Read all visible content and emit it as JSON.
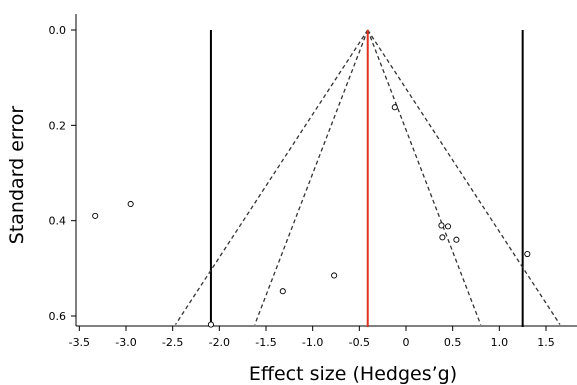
{
  "chart_data": {
    "type": "scatter",
    "title": "",
    "xlabel": "Effect size (Hedges’g)",
    "ylabel": "Standard error",
    "x_ticks": [
      "-3.5",
      "-3.0",
      "-2.5",
      "-2.0",
      "-1.5",
      "-1.0",
      "-0.5",
      "0",
      "0.5",
      "1.0",
      "1.5"
    ],
    "y_ticks": [
      "0.0",
      "0.2",
      "0.4",
      "0.6"
    ],
    "xlim": [
      -3.6,
      1.85
    ],
    "ylim": [
      0.0,
      0.625
    ],
    "y_inverted": true,
    "grid": false,
    "points": [
      {
        "x": -0.12,
        "y": 0.162
      },
      {
        "x": -2.95,
        "y": 0.365
      },
      {
        "x": -3.33,
        "y": 0.39
      },
      {
        "x": 0.38,
        "y": 0.41
      },
      {
        "x": 0.45,
        "y": 0.412
      },
      {
        "x": 0.39,
        "y": 0.435
      },
      {
        "x": 0.54,
        "y": 0.44
      },
      {
        "x": 1.3,
        "y": 0.47
      },
      {
        "x": -0.77,
        "y": 0.515
      },
      {
        "x": -1.32,
        "y": 0.548
      },
      {
        "x": -2.09,
        "y": 0.618
      }
    ],
    "pooled_effect": -0.41,
    "pooled_line_color": "#e0301e",
    "vertical_bounds": [
      -2.09,
      1.25
    ],
    "funnel_inner": {
      "apex": [
        -0.41,
        0.0
      ],
      "left": [
        -1.62,
        0.618
      ],
      "right": [
        0.8,
        0.618
      ]
    },
    "funnel_outer": {
      "apex": [
        -0.41,
        0.0
      ],
      "left": [
        -2.47,
        0.618
      ],
      "right": [
        1.65,
        0.618
      ]
    },
    "point_style": "open-circle"
  }
}
